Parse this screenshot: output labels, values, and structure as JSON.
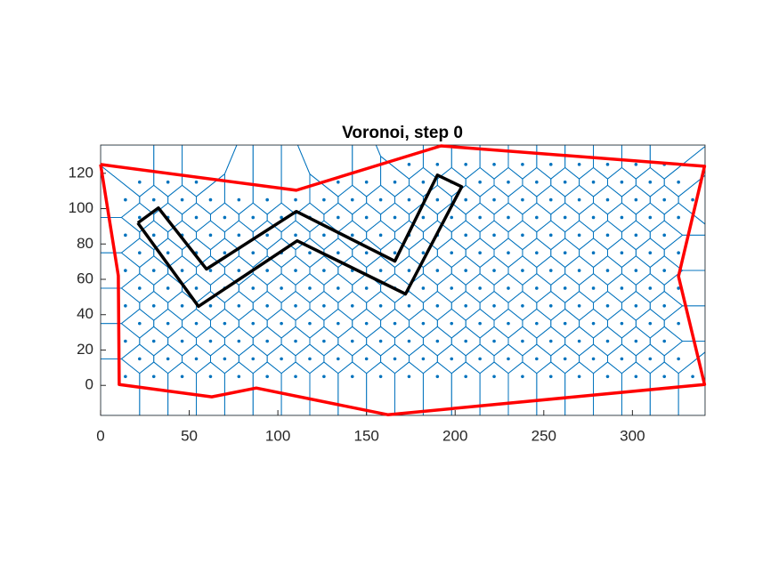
{
  "chart_data": {
    "type": "voronoi",
    "title": "Voronoi, step 0",
    "xlim": [
      0,
      341
    ],
    "ylim": [
      -17,
      136
    ],
    "xticks": [
      0,
      50,
      100,
      150,
      200,
      250,
      300
    ],
    "yticks": [
      0,
      20,
      40,
      60,
      80,
      100,
      120
    ],
    "sites": {
      "color": "#0072BD",
      "rows": [
        {
          "y": 5,
          "x": [
            14,
            30,
            46,
            62,
            78,
            94,
            110,
            126,
            142,
            158,
            174,
            190,
            206,
            222,
            238,
            254,
            270,
            286,
            302,
            318,
            334
          ]
        },
        {
          "y": 15,
          "x": [
            22,
            38,
            54,
            70,
            86,
            102,
            118,
            134,
            150,
            166,
            182,
            198,
            214,
            230,
            246,
            262,
            278,
            294,
            310,
            326
          ]
        },
        {
          "y": 25,
          "x": [
            14,
            30,
            46,
            62,
            78,
            94,
            110,
            126,
            142,
            158,
            174,
            190,
            206,
            222,
            238,
            254,
            270,
            286,
            302,
            318
          ]
        },
        {
          "y": 35,
          "x": [
            22,
            38,
            54,
            70,
            86,
            102,
            118,
            134,
            150,
            166,
            182,
            198,
            214,
            230,
            246,
            262,
            278,
            294,
            310,
            326
          ]
        },
        {
          "y": 45,
          "x": [
            14,
            30,
            46,
            62,
            78,
            94,
            110,
            126,
            142,
            158,
            174,
            190,
            206,
            222,
            238,
            254,
            270,
            286,
            302,
            318
          ]
        },
        {
          "y": 55,
          "x": [
            22,
            38,
            54,
            70,
            86,
            102,
            118,
            134,
            150,
            166,
            182,
            198,
            214,
            230,
            246,
            262,
            278,
            294,
            310,
            326
          ]
        },
        {
          "y": 65,
          "x": [
            14,
            30,
            46,
            62,
            78,
            94,
            110,
            126,
            142,
            158,
            174,
            190,
            206,
            222,
            238,
            254,
            270,
            286,
            302,
            318
          ]
        },
        {
          "y": 75,
          "x": [
            22,
            38,
            54,
            70,
            86,
            102,
            118,
            134,
            150,
            166,
            182,
            198,
            214,
            230,
            246,
            262,
            278,
            294,
            310,
            326
          ]
        },
        {
          "y": 85,
          "x": [
            14,
            30,
            46,
            62,
            78,
            94,
            110,
            126,
            142,
            158,
            174,
            190,
            206,
            222,
            238,
            254,
            270,
            286,
            302,
            318
          ]
        },
        {
          "y": 95,
          "x": [
            22,
            38,
            54,
            70,
            86,
            102,
            118,
            134,
            150,
            166,
            182,
            198,
            214,
            230,
            246,
            262,
            278,
            294,
            310,
            326
          ]
        },
        {
          "y": 105,
          "x": [
            14,
            30,
            46,
            62,
            78,
            94,
            110,
            126,
            142,
            158,
            174,
            190,
            206,
            222,
            238,
            254,
            270,
            286,
            302,
            318,
            334
          ]
        },
        {
          "y": 115,
          "x": [
            22,
            38,
            54,
            134,
            150,
            166,
            182,
            198,
            214,
            230,
            246,
            262,
            278,
            294,
            310,
            326
          ]
        },
        {
          "y": 125,
          "x": [
            174,
            190,
            206,
            222,
            238,
            254,
            270,
            286,
            302,
            318
          ]
        }
      ]
    },
    "boundary": {
      "color": "#FF0000",
      "x": [
        0,
        110.4,
        192,
        340.7,
        326,
        340.7,
        162,
        87.8,
        62.7,
        10.5,
        10,
        0
      ],
      "y": [
        125,
        110.4,
        135.5,
        124,
        61.7,
        0.5,
        -16.6,
        -1.5,
        -6.5,
        0.5,
        62,
        125
      ]
    },
    "obstacle": {
      "color": "#000000",
      "x": [
        21,
        32.6,
        59.7,
        110.4,
        166,
        190,
        203.7,
        172,
        110.9,
        55.2,
        21
      ],
      "y": [
        91.9,
        100.4,
        65.8,
        98.4,
        70.3,
        119,
        112.4,
        51.7,
        81.8,
        44.7,
        91.9
      ]
    }
  }
}
